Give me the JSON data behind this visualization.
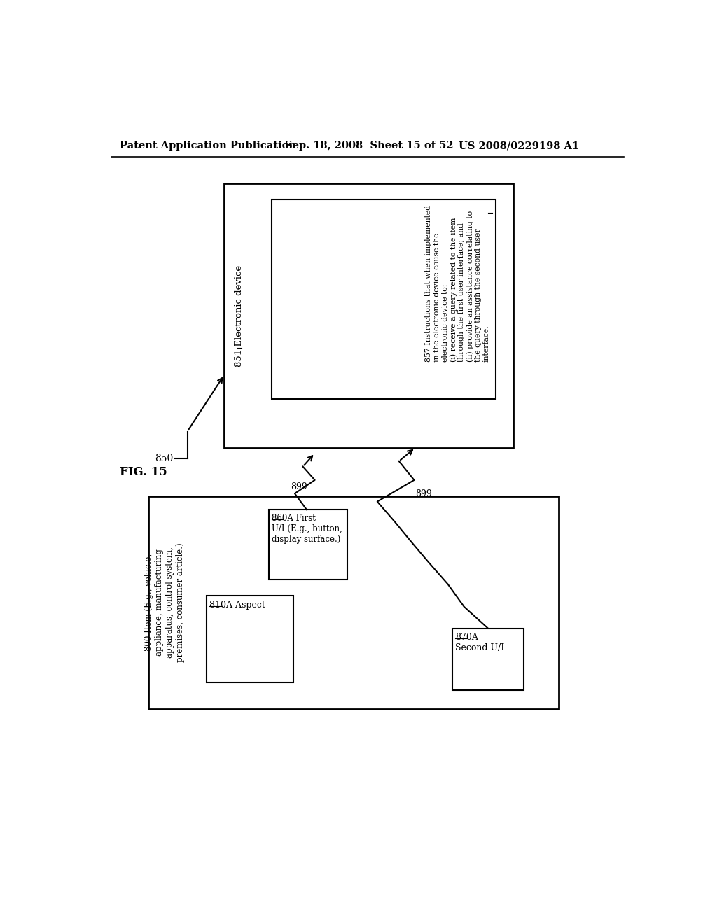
{
  "bg_color": "#ffffff",
  "header_left": "Patent Application Publication",
  "header_mid": "Sep. 18, 2008  Sheet 15 of 52",
  "header_right": "US 2008/0229198 A1",
  "fig_label": "FIG. 15",
  "label_850": "850",
  "label_851": "851 Electronic device",
  "label_857": "857 Instructions that when implemented\nin the electronic device cause the\nelectronic device to:\n(i) receive a query related to the item\nthrough the first user interface; and\n(ii) provide an assistance correlating to\nthe query through the second user\ninterface.",
  "label_800": "800 Item (E.g., vehicle,\nappliance, manufacturing\napparatus, control system,\npremises, consumer article.)",
  "label_810": "810A Aspect",
  "label_860": "860A First\nU/I (E.g., button,\ndisplay surface.)",
  "label_870": "870A\nSecond U/I",
  "label_899": "899"
}
